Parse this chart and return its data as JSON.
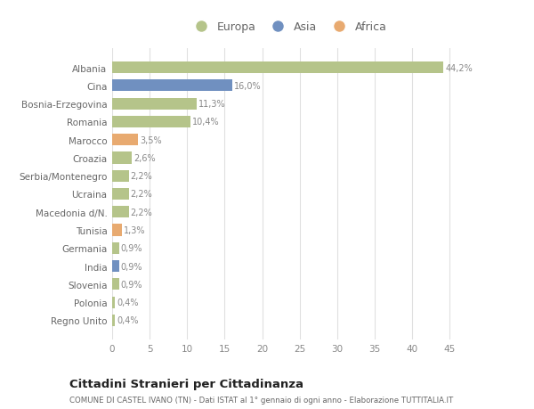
{
  "countries": [
    "Albania",
    "Cina",
    "Bosnia-Erzegovina",
    "Romania",
    "Marocco",
    "Croazia",
    "Serbia/Montenegro",
    "Ucraina",
    "Macedonia d/N.",
    "Tunisia",
    "Germania",
    "India",
    "Slovenia",
    "Polonia",
    "Regno Unito"
  ],
  "values": [
    44.2,
    16.0,
    11.3,
    10.4,
    3.5,
    2.6,
    2.2,
    2.2,
    2.2,
    1.3,
    0.9,
    0.9,
    0.9,
    0.4,
    0.4
  ],
  "labels": [
    "44,2%",
    "16,0%",
    "11,3%",
    "10,4%",
    "3,5%",
    "2,6%",
    "2,2%",
    "2,2%",
    "2,2%",
    "1,3%",
    "0,9%",
    "0,9%",
    "0,9%",
    "0,4%",
    "0,4%"
  ],
  "continents": [
    "Europa",
    "Asia",
    "Europa",
    "Europa",
    "Africa",
    "Europa",
    "Europa",
    "Europa",
    "Europa",
    "Africa",
    "Europa",
    "Asia",
    "Europa",
    "Europa",
    "Europa"
  ],
  "colors": {
    "Europa": "#b5c48a",
    "Asia": "#7090c0",
    "Africa": "#e8aa70"
  },
  "background_color": "#ffffff",
  "plot_bg_color": "#ffffff",
  "title1": "Cittadini Stranieri per Cittadinanza",
  "title2": "COMUNE DI CASTEL IVANO (TN) - Dati ISTAT al 1° gennaio di ogni anno - Elaborazione TUTTITALIA.IT",
  "xlim": [
    0,
    47
  ],
  "xticks": [
    0,
    5,
    10,
    15,
    20,
    25,
    30,
    35,
    40,
    45
  ],
  "label_color": "#888888",
  "ytick_color": "#666666",
  "title1_color": "#222222",
  "title2_color": "#666666"
}
